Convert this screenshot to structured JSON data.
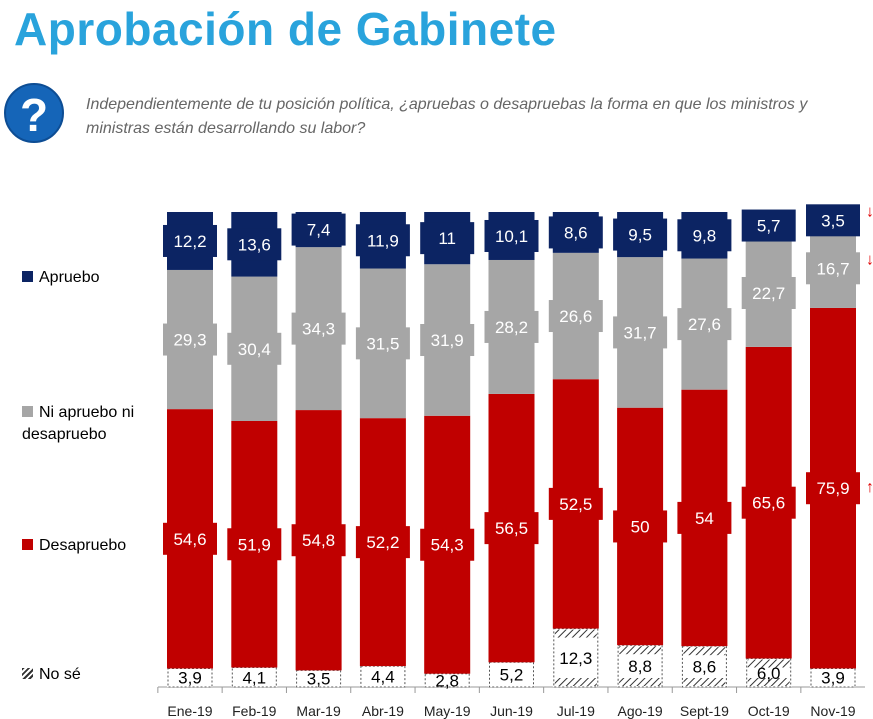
{
  "title": "Aprobación de Gabinete",
  "question": "Independientemente de tu posición política, ¿apruebas o desapruebas la forma en que los ministros y ministras están desarrollando su labor?",
  "icons": {
    "question": "question-mark-icon"
  },
  "chart_data": {
    "type": "bar",
    "stacked": true,
    "categories": [
      "Ene-19",
      "Feb-19",
      "Mar-19",
      "Abr-19",
      "May-19",
      "Jun-19",
      "Jul-19",
      "Ago-19",
      "Sept-19",
      "Oct-19",
      "Nov-19"
    ],
    "series": [
      {
        "name": "No sé",
        "color": "hatched",
        "values": [
          "3,9",
          "4,1",
          "3,5",
          "4,4",
          "2,8",
          "5,2",
          "12,3",
          "8,8",
          "8,6",
          "6,0",
          "3,9"
        ]
      },
      {
        "name": "Desapruebo",
        "color": "#c00000",
        "values": [
          "54,6",
          "51,9",
          "54,8",
          "52,2",
          "54,3",
          "56,5",
          "52,5",
          "50",
          "54",
          "65,6",
          "75,9"
        ]
      },
      {
        "name": "Ni apruebo ni desapruebo",
        "color": "#a6a6a6",
        "values": [
          "29,3",
          "30,4",
          "34,3",
          "31,5",
          "31,9",
          "28,2",
          "26,6",
          "31,7",
          "27,6",
          "22,7",
          "16,7"
        ]
      },
      {
        "name": "Apruebo",
        "color": "#0c2463",
        "values": [
          "12,2",
          "13,6",
          "7,4",
          "11,9",
          "11",
          "10,1",
          "8,6",
          "9,5",
          "9,8",
          "5,7",
          "3,5"
        ]
      }
    ],
    "ylim": [
      0,
      100
    ],
    "legend": "left",
    "annotations": [
      {
        "category": "Nov-19",
        "series": "Apruebo",
        "mark": "↓",
        "color": "#e00000"
      },
      {
        "category": "Nov-19",
        "series": "Ni apruebo ni desapruebo",
        "mark": "↓",
        "color": "#e00000"
      },
      {
        "category": "Nov-19",
        "series": "Desapruebo",
        "mark": "↑",
        "color": "#e00000"
      }
    ]
  }
}
